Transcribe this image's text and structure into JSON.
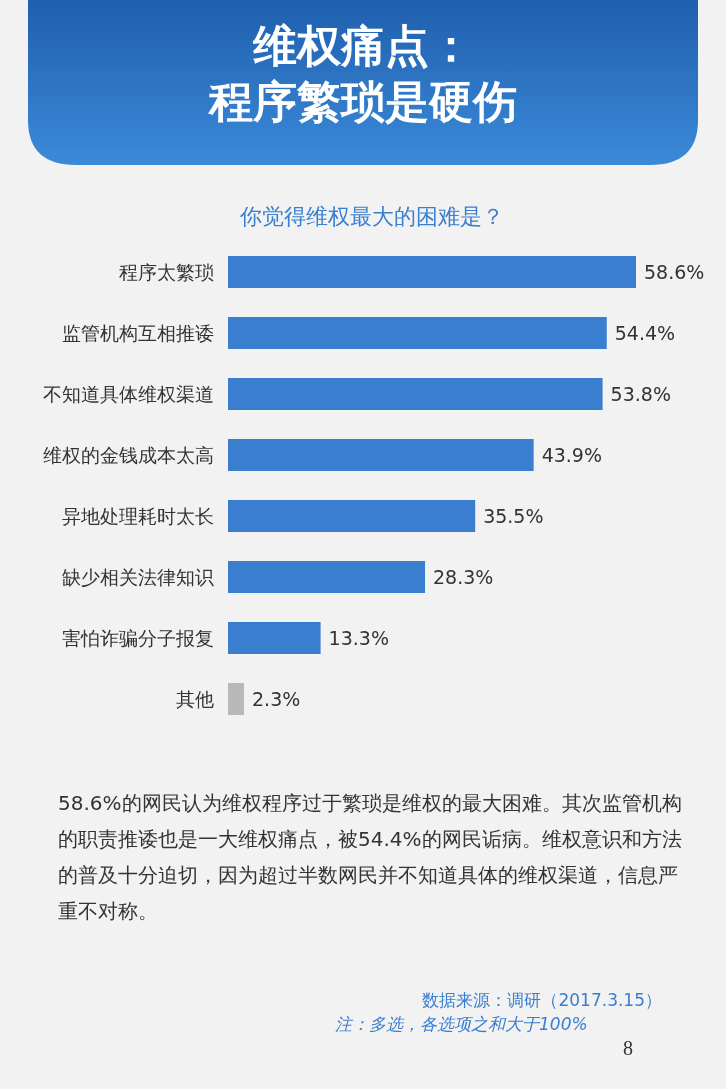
{
  "chart_data": {
    "type": "bar",
    "orientation": "horizontal",
    "title": "维权痛点：程序繁琐是硬伤",
    "subtitle": "你觉得维权最大的困难是？",
    "categories": [
      "程序太繁琐",
      "监管机构互相推诿",
      "不知道具体维权渠道",
      "维权的金钱成本太高",
      "异地处理耗时太长",
      "缺少相关法律知识",
      "害怕诈骗分子报复",
      "其他"
    ],
    "values": [
      58.6,
      54.4,
      53.8,
      43.9,
      35.5,
      28.3,
      13.3,
      2.3
    ],
    "value_labels": [
      "58.6%",
      "54.4%",
      "53.8%",
      "43.9%",
      "35.5%",
      "28.3%",
      "13.3%",
      "2.3%"
    ],
    "colors": [
      "#3a7fcf",
      "#3a7fcf",
      "#3a7fcf",
      "#3a7fcf",
      "#3a7fcf",
      "#3a7fcf",
      "#3a7fcf",
      "#b8b8b8"
    ],
    "annotations": [
      "58.6%的网民认为维权程序过于繁琐是维权的最大困难。其次监管机构的职责推诿也是一大维权痛点，被54.4%的网民诟病。维权意识和方法的普及十分迫切，因为超过半数网民并不知道具体的维权渠道，信息严重不对称。",
      "数据来源：调研（2017.3.15）",
      "注：多选，各选项之和大于100%",
      "8"
    ]
  }
}
